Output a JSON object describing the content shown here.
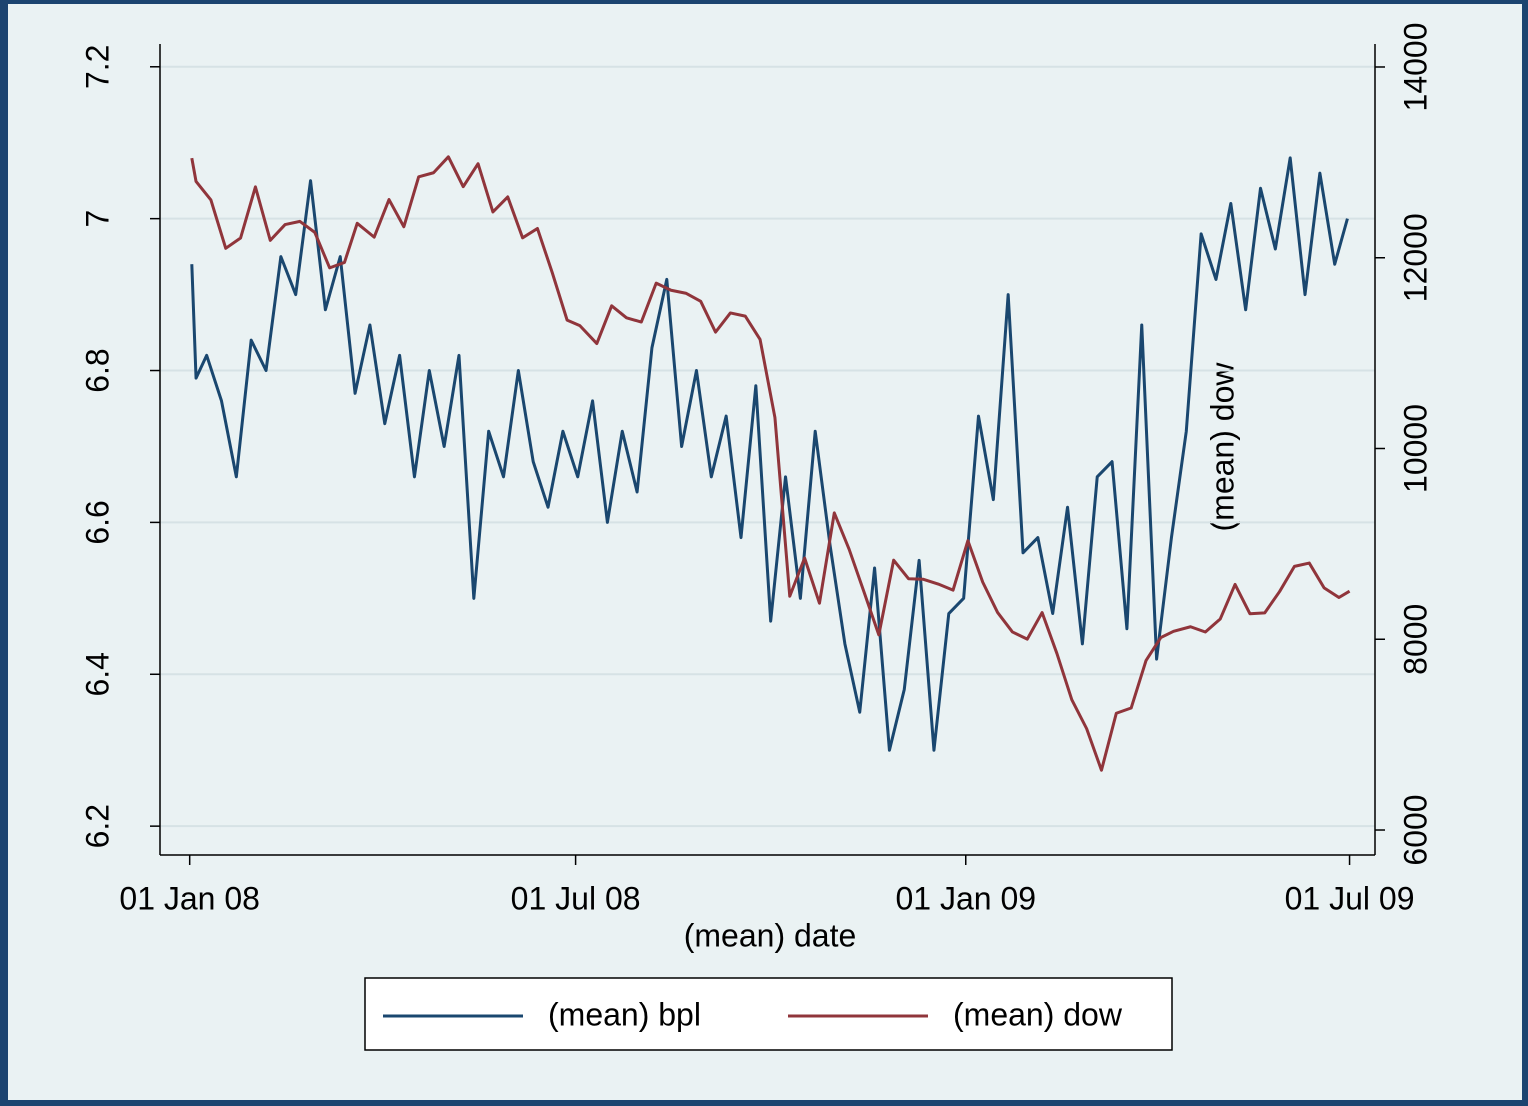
{
  "chart_data": {
    "type": "line",
    "x_label": "(mean) date",
    "y2_label": "(mean) dow",
    "xlim": [
      "2007-12-18",
      "2009-07-13"
    ],
    "xticks": [
      {
        "value": "2008-01-01",
        "label": "01 Jan 08"
      },
      {
        "value": "2008-07-01",
        "label": "01 Jul 08"
      },
      {
        "value": "2009-01-01",
        "label": "01 Jan 09"
      },
      {
        "value": "2009-07-01",
        "label": "01 Jul 09"
      }
    ],
    "ylim": [
      6.162,
      7.23
    ],
    "yticks": [
      6.2,
      6.4,
      6.6,
      6.8,
      7,
      7.2
    ],
    "y2lim": [
      5738,
      14241
    ],
    "y2ticks": [
      6000,
      8000,
      10000,
      12000,
      14000
    ],
    "grid": true,
    "legend": "bottom",
    "series": [
      {
        "name": "(mean) bpl",
        "color": "#1a476f",
        "x": [
          "2008-01-02",
          "2008-01-04",
          "2008-01-09",
          "2008-01-16",
          "2008-01-23",
          "2008-01-30",
          "2008-02-06",
          "2008-02-13",
          "2008-02-20",
          "2008-02-27",
          "2008-03-05",
          "2008-03-12",
          "2008-03-19",
          "2008-03-26",
          "2008-04-02",
          "2008-04-09",
          "2008-04-16",
          "2008-04-23",
          "2008-04-30",
          "2008-05-07",
          "2008-05-14",
          "2008-05-21",
          "2008-05-28",
          "2008-06-04",
          "2008-06-11",
          "2008-06-18",
          "2008-06-25",
          "2008-07-02",
          "2008-07-09",
          "2008-07-16",
          "2008-07-23",
          "2008-07-30",
          "2008-08-06",
          "2008-08-13",
          "2008-08-20",
          "2008-08-27",
          "2008-09-03",
          "2008-09-10",
          "2008-09-17",
          "2008-09-24",
          "2008-10-01",
          "2008-10-08",
          "2008-10-15",
          "2008-10-22",
          "2008-10-29",
          "2008-11-05",
          "2008-11-12",
          "2008-11-19",
          "2008-11-26",
          "2008-12-03",
          "2008-12-10",
          "2008-12-17",
          "2008-12-24",
          "2008-12-31",
          "2009-01-07",
          "2009-01-14",
          "2009-01-21",
          "2009-01-28",
          "2009-02-04",
          "2009-02-11",
          "2009-02-18",
          "2009-02-25",
          "2009-03-04",
          "2009-03-11",
          "2009-03-18",
          "2009-03-25",
          "2009-04-01",
          "2009-04-08",
          "2009-04-15",
          "2009-04-22",
          "2009-04-29",
          "2009-05-06",
          "2009-05-13",
          "2009-05-20",
          "2009-05-27",
          "2009-06-03",
          "2009-06-10",
          "2009-06-17",
          "2009-06-24",
          "2009-06-30"
        ],
        "values": [
          6.94,
          6.79,
          6.82,
          6.76,
          6.66,
          6.84,
          6.8,
          6.95,
          6.9,
          7.05,
          6.88,
          6.95,
          6.77,
          6.86,
          6.73,
          6.82,
          6.66,
          6.8,
          6.7,
          6.82,
          6.5,
          6.72,
          6.66,
          6.8,
          6.68,
          6.62,
          6.72,
          6.66,
          6.76,
          6.6,
          6.72,
          6.64,
          6.83,
          6.92,
          6.7,
          6.8,
          6.66,
          6.74,
          6.58,
          6.78,
          6.47,
          6.66,
          6.5,
          6.72,
          6.57,
          6.44,
          6.35,
          6.54,
          6.3,
          6.38,
          6.55,
          6.3,
          6.48,
          6.5,
          6.74,
          6.63,
          6.9,
          6.56,
          6.58,
          6.48,
          6.62,
          6.44,
          6.66,
          6.68,
          6.46,
          6.86,
          6.42,
          6.58,
          6.72,
          6.98,
          6.92,
          7.02,
          6.88,
          7.04,
          6.96,
          7.08,
          6.9,
          7.06,
          6.94,
          7
        ]
      },
      {
        "name": "(mean) dow",
        "color": "#90353b",
        "axis": "y2",
        "x": [
          "2008-01-02",
          "2008-01-04",
          "2008-01-11",
          "2008-01-18",
          "2008-01-25",
          "2008-02-01",
          "2008-02-08",
          "2008-02-15",
          "2008-02-22",
          "2008-02-29",
          "2008-03-07",
          "2008-03-14",
          "2008-03-20",
          "2008-03-28",
          "2008-04-04",
          "2008-04-11",
          "2008-04-18",
          "2008-04-25",
          "2008-05-02",
          "2008-05-09",
          "2008-05-16",
          "2008-05-23",
          "2008-05-30",
          "2008-06-06",
          "2008-06-13",
          "2008-06-20",
          "2008-06-27",
          "2008-07-03",
          "2008-07-11",
          "2008-07-18",
          "2008-07-25",
          "2008-08-01",
          "2008-08-08",
          "2008-08-15",
          "2008-08-22",
          "2008-08-29",
          "2008-09-05",
          "2008-09-12",
          "2008-09-19",
          "2008-09-26",
          "2008-10-03",
          "2008-10-10",
          "2008-10-17",
          "2008-10-24",
          "2008-10-31",
          "2008-11-07",
          "2008-11-14",
          "2008-11-21",
          "2008-11-28",
          "2008-12-05",
          "2008-12-12",
          "2008-12-19",
          "2008-12-26",
          "2009-01-02",
          "2009-01-09",
          "2009-01-16",
          "2009-01-23",
          "2009-01-30",
          "2009-02-06",
          "2009-02-13",
          "2009-02-20",
          "2009-02-27",
          "2009-03-06",
          "2009-03-13",
          "2009-03-20",
          "2009-03-27",
          "2009-04-03",
          "2009-04-09",
          "2009-04-17",
          "2009-04-24",
          "2009-05-01",
          "2009-05-08",
          "2009-05-15",
          "2009-05-22",
          "2009-05-29",
          "2009-06-05",
          "2009-06-12",
          "2009-06-19",
          "2009-06-26",
          "2009-07-01"
        ],
        "values": [
          13044,
          12800,
          12606,
          12099,
          12207,
          12743,
          12182,
          12348,
          12381,
          12266,
          11894,
          11951,
          12361,
          12216,
          12610,
          12325,
          12849,
          12891,
          13058,
          12745,
          12986,
          12480,
          12638,
          12209,
          12307,
          11843,
          11346,
          11288,
          11100,
          11496,
          11370,
          11326,
          11734,
          11659,
          11628,
          11543,
          11220,
          11421,
          11388,
          11143,
          10325,
          8451,
          8852,
          8378,
          9325,
          8943,
          8497,
          8046,
          8829,
          8635,
          8629,
          8579,
          8515,
          9034,
          8599,
          8281,
          8077,
          8001,
          8280,
          7850,
          7366,
          7063,
          6627,
          7224,
          7279,
          7776,
          8018,
          8083,
          8131,
          8076,
          8212,
          8575,
          8268,
          8277,
          8500,
          8764,
          8799,
          8539,
          8438,
          8504
        ]
      }
    ]
  }
}
